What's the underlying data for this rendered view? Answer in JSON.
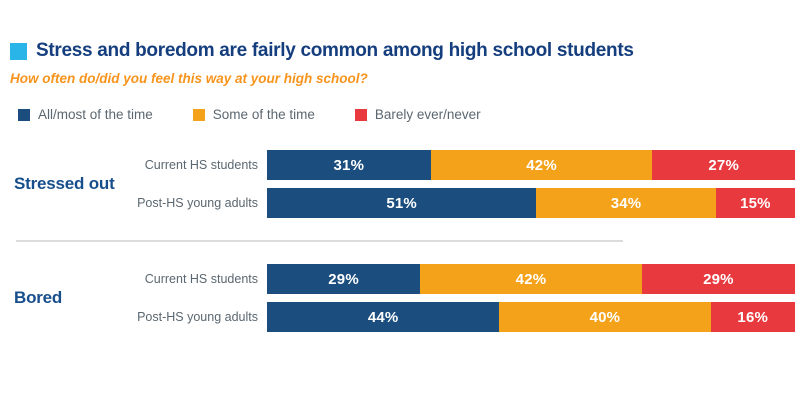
{
  "title": {
    "text": "Stress and boredom are fairly common among high school students",
    "bullet_color": "#29B5E8",
    "text_color": "#153E7E"
  },
  "subtitle": {
    "text": "How often do/did you feel this way at your high school?",
    "color": "#F7941D"
  },
  "legend": {
    "items": [
      {
        "label": "All/most of the time",
        "color": "#1B4D7E"
      },
      {
        "label": "Some of the time",
        "color": "#F5A21B"
      },
      {
        "label": "Barely ever/never",
        "color": "#E8393F"
      }
    ]
  },
  "chart_data": {
    "type": "bar",
    "orientation": "horizontal-stacked",
    "value_suffix": "%",
    "xlim": [
      0,
      100
    ],
    "series_names": [
      "All/most of the time",
      "Some of the time",
      "Barely ever/never"
    ],
    "series_colors": [
      "#1B4D7E",
      "#F5A21B",
      "#E8393F"
    ],
    "groups": [
      {
        "label": "Stressed out",
        "rows": [
          {
            "label": "Current HS students",
            "values": [
              31,
              42,
              27
            ],
            "value_labels": [
              "31%",
              "42%",
              "27%"
            ]
          },
          {
            "label": "Post-HS young adults",
            "values": [
              51,
              34,
              15
            ],
            "value_labels": [
              "51%",
              "34%",
              "15%"
            ]
          }
        ]
      },
      {
        "label": "Bored",
        "rows": [
          {
            "label": "Current HS students",
            "values": [
              29,
              42,
              29
            ],
            "value_labels": [
              "29%",
              "42%",
              "29%"
            ]
          },
          {
            "label": "Post-HS young adults",
            "values": [
              44,
              40,
              16
            ],
            "value_labels": [
              "44%",
              "40%",
              "16%"
            ]
          }
        ]
      }
    ]
  }
}
